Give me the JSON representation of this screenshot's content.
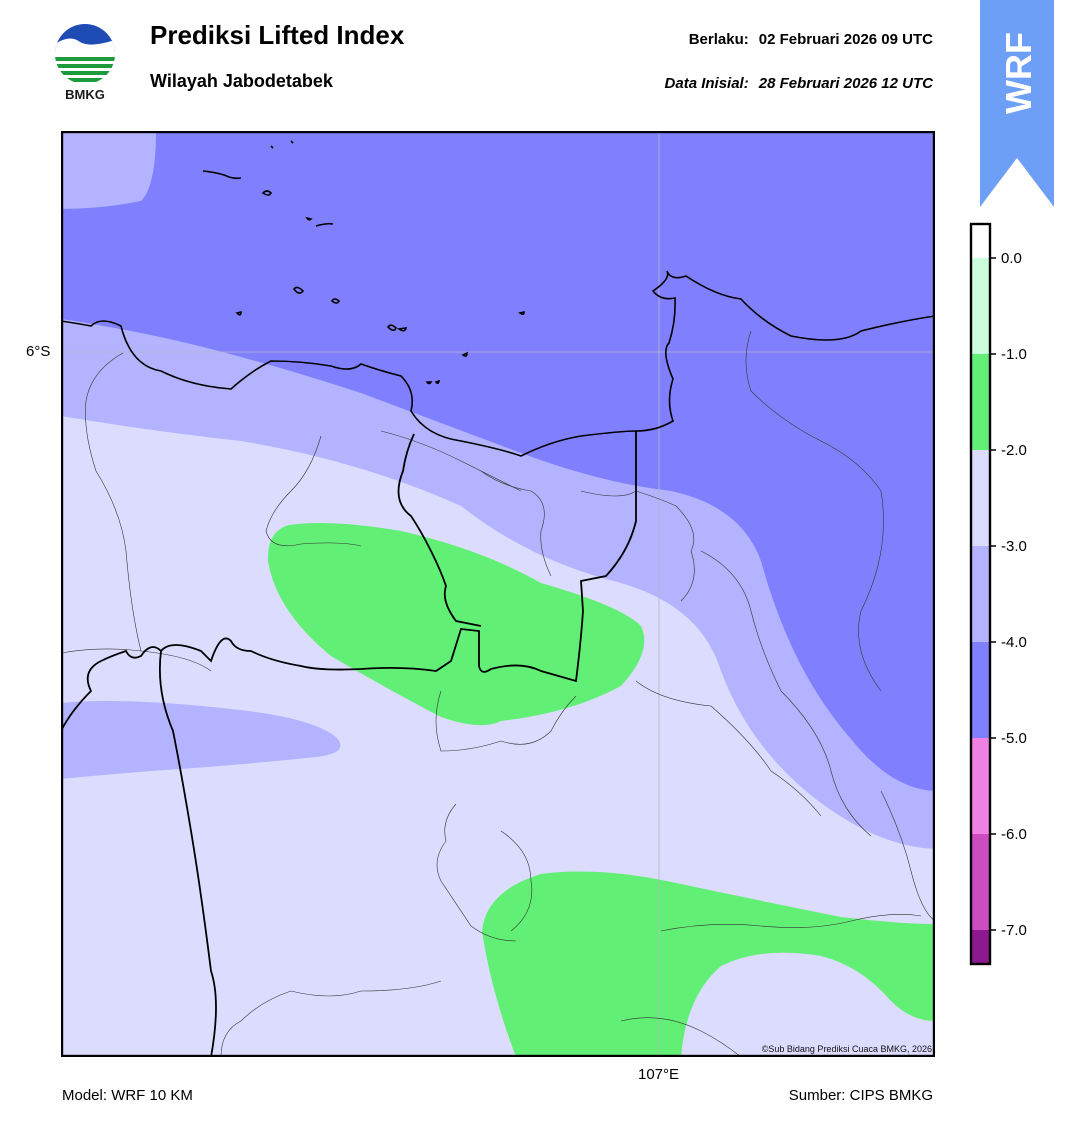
{
  "header": {
    "title": "Prediksi Lifted Index",
    "subtitle": "Wilayah Jabodetabek",
    "valid_label": "Berlaku:",
    "valid_value": "02 Februari 2026 09 UTC",
    "init_label": "Data Inisial:",
    "init_value": "28 Februari 2026 12 UTC"
  },
  "logo": {
    "text": "BMKG",
    "icon": "bmkg-logo-icon"
  },
  "badge": {
    "text": "WRF",
    "icon": "up-arrow-icon",
    "color": "#6e9ff7"
  },
  "map": {
    "latitude_label": "6°S",
    "longitude_label": "107°E",
    "credit": "©Sub Bidang Prediksi Cuaca BMKG, 2026",
    "colors": {
      "band_-5_-4": "#8080ff",
      "band_-4_-3": "#b3b3ff",
      "band_-3_-2": "#dcdcff",
      "band_-2_-1": "#62ef75"
    }
  },
  "colorbar": {
    "ticks": [
      "0.0",
      "-1.0",
      "-2.0",
      "-3.0",
      "-4.0",
      "-5.0",
      "-6.0",
      "-7.0"
    ],
    "colors": [
      "#ccffdd",
      "#62ef75",
      "#dcdcff",
      "#b3b3ff",
      "#8080ff",
      "#ef82e3",
      "#cc4dc2",
      "#8c198f"
    ]
  },
  "footer": {
    "model": "Model: WRF 10 KM",
    "source": "Sumber: CIPS BMKG"
  }
}
